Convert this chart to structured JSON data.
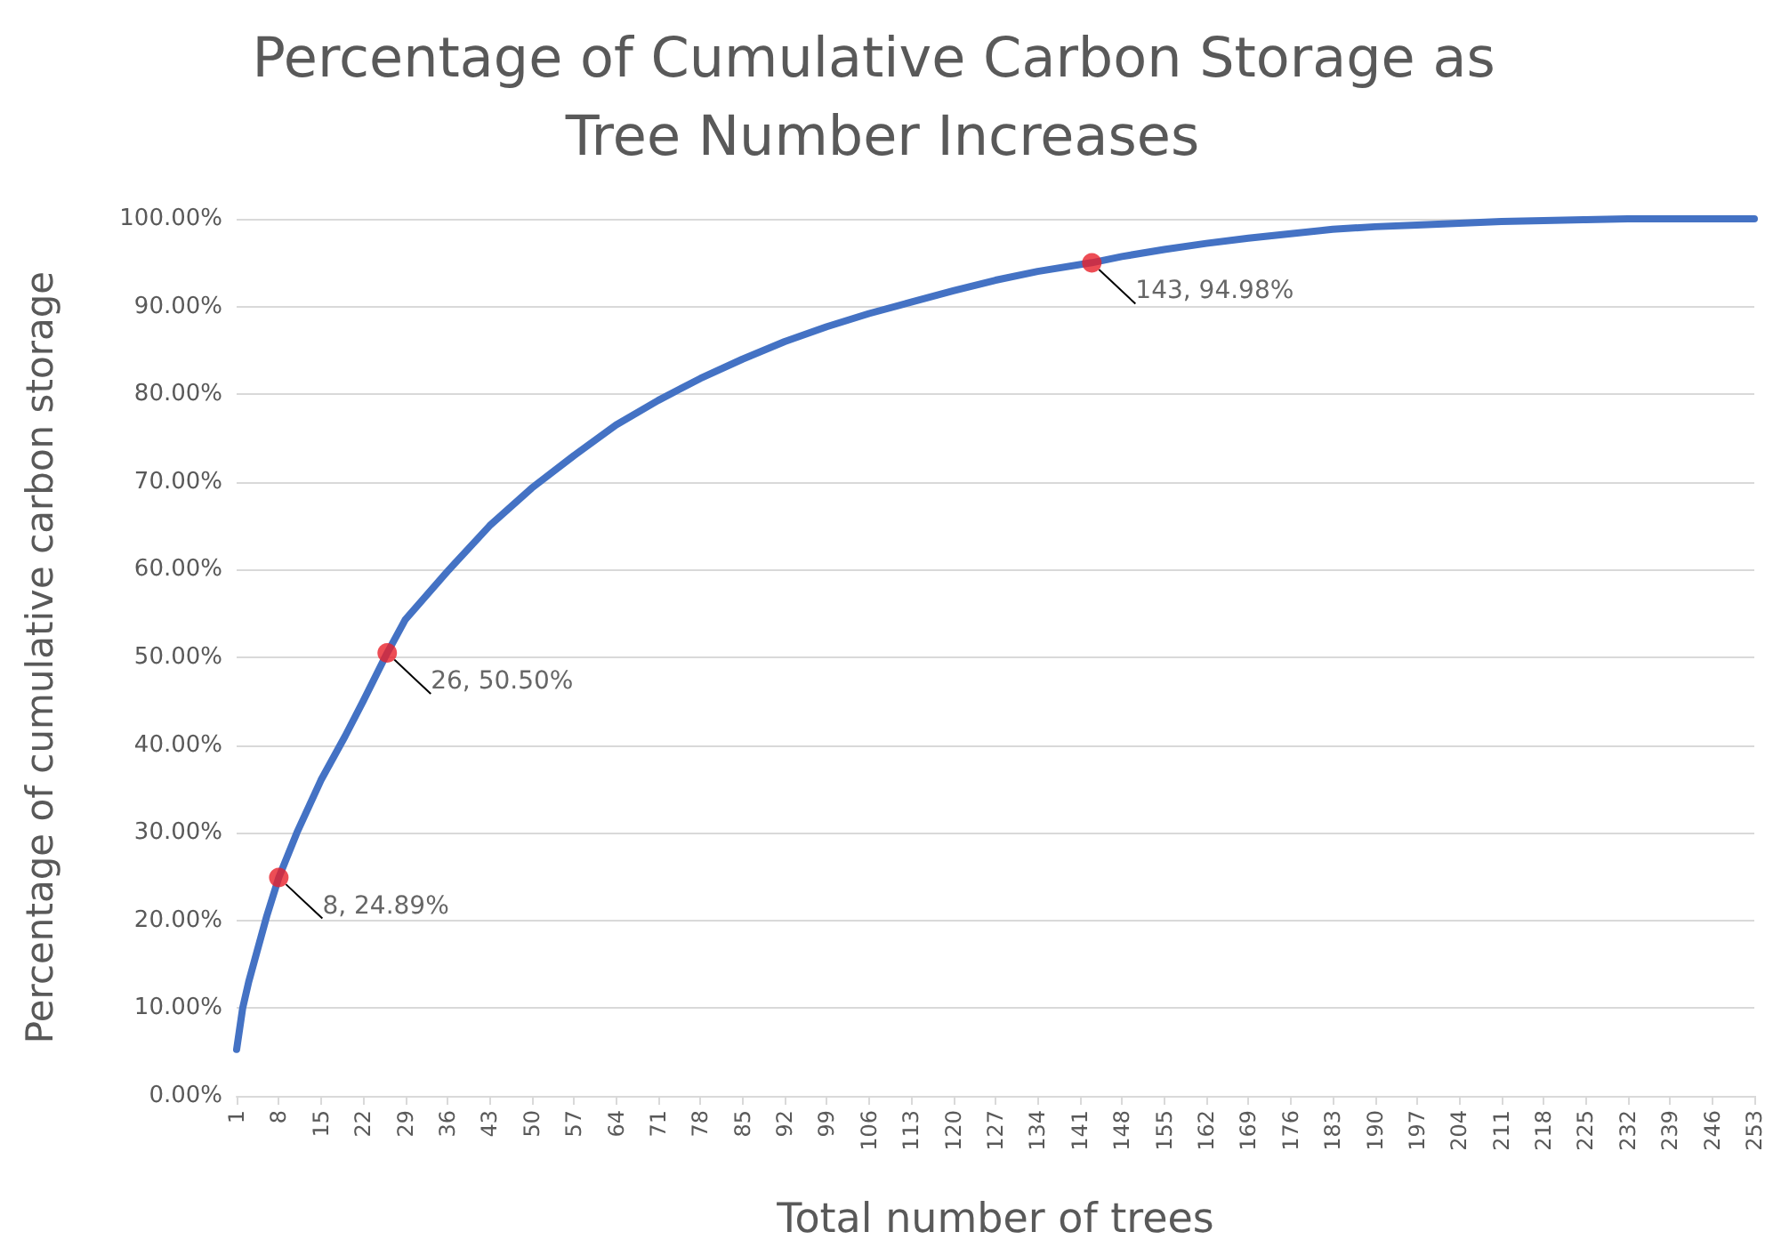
{
  "chart_data": {
    "type": "line",
    "title": "Percentage of Cumulative Carbon Storage as Tree Number Increases",
    "xlabel": "Total number of trees",
    "ylabel": "Percentage of cumulative carbon storage",
    "xlim": [
      1,
      253
    ],
    "xticks": [
      1,
      8,
      15,
      22,
      29,
      36,
      43,
      50,
      57,
      64,
      71,
      78,
      85,
      92,
      99,
      106,
      113,
      120,
      127,
      134,
      141,
      148,
      155,
      162,
      169,
      176,
      183,
      190,
      197,
      204,
      211,
      218,
      225,
      232,
      239,
      246,
      253
    ],
    "ylim": [
      0,
      100
    ],
    "yticks": [
      {
        "value": 0,
        "label": "0.00%"
      },
      {
        "value": 10,
        "label": "10.00%"
      },
      {
        "value": 20,
        "label": "20.00%"
      },
      {
        "value": 30,
        "label": "30.00%"
      },
      {
        "value": 40,
        "label": "40.00%"
      },
      {
        "value": 50,
        "label": "50.00%"
      },
      {
        "value": 60,
        "label": "60.00%"
      },
      {
        "value": 70,
        "label": "70.00%"
      },
      {
        "value": 80,
        "label": "80.00%"
      },
      {
        "value": 90,
        "label": "90.00%"
      },
      {
        "value": 100,
        "label": "100.00%"
      }
    ],
    "grid": "y",
    "series": [
      {
        "color": "#4472c4",
        "marker": "none",
        "x": [
          1,
          2,
          3,
          4,
          6,
          8,
          11,
          15,
          19,
          22,
          26,
          29,
          36,
          43,
          50,
          57,
          64,
          71,
          78,
          85,
          92,
          99,
          106,
          113,
          120,
          127,
          134,
          143,
          148,
          155,
          162,
          169,
          176,
          183,
          190,
          197,
          204,
          211,
          218,
          225,
          232,
          239,
          246,
          253
        ],
        "values": [
          5.3,
          10,
          13,
          15.5,
          20.5,
          24.9,
          30,
          36,
          41,
          45,
          50.5,
          54.3,
          59.8,
          65,
          69.3,
          73,
          76.5,
          79.3,
          81.8,
          84,
          86,
          87.7,
          89.2,
          90.5,
          91.8,
          93,
          94,
          95,
          95.7,
          96.5,
          97.2,
          97.8,
          98.3,
          98.8,
          99.1,
          99.3,
          99.5,
          99.7,
          99.8,
          99.9,
          100,
          100,
          100,
          100
        ]
      },
      {
        "type": "scatter",
        "color": "#e8202a",
        "marker": "circle",
        "x": [
          8,
          26,
          143
        ],
        "values": [
          24.89,
          50.5,
          94.98
        ],
        "value_labels": [
          "8, 24.89%",
          "26, 50.50%",
          "143, 94.98%"
        ]
      }
    ]
  }
}
